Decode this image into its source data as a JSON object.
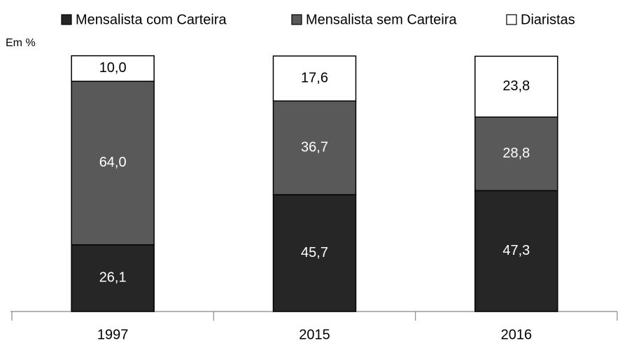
{
  "chart_data": {
    "type": "stacked_bar",
    "unit_label": "Em %",
    "categories": [
      "1997",
      "2015",
      "2016"
    ],
    "ylim": [
      0,
      100
    ],
    "series": [
      {
        "name": "Mensalista com Carteira",
        "color": "#262626",
        "values": [
          26.1,
          45.7,
          47.3
        ],
        "value_labels": [
          "26,1",
          "45,7",
          "47,3"
        ]
      },
      {
        "name": "Mensalista sem Carteira",
        "color": "#595959",
        "values": [
          64.0,
          36.7,
          28.8
        ],
        "value_labels": [
          "64,0",
          "36,7",
          "28,8"
        ]
      },
      {
        "name": "Diaristas",
        "color": "#ffffff",
        "values": [
          10.0,
          17.6,
          23.8
        ],
        "value_labels": [
          "10,0",
          "17,6",
          "23,8"
        ]
      }
    ]
  }
}
